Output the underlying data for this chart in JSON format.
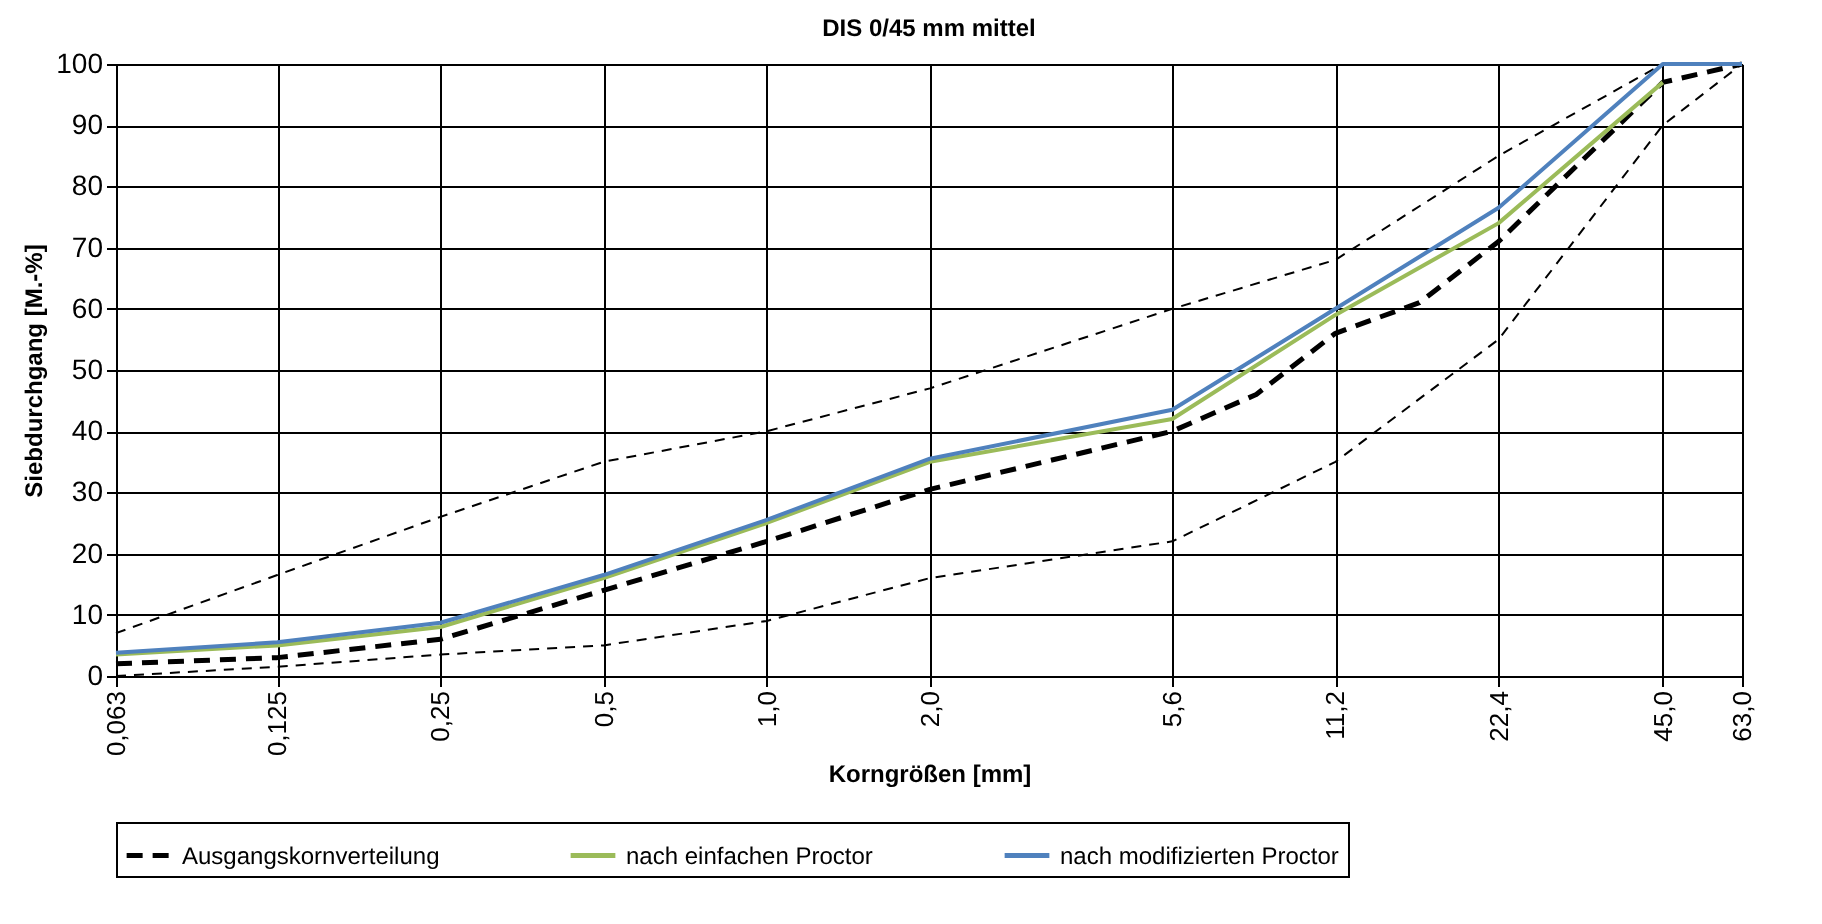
{
  "chart_data": {
    "type": "line",
    "title": "DIS 0/45 mm mittel",
    "xlabel": "Korngrößen [mm]",
    "ylabel": "Siebdurchgang [M.-%]",
    "log": "x",
    "grid": true,
    "legend": "bottom",
    "xlim": [
      0.063,
      63
    ],
    "ylim": [
      0,
      100
    ],
    "xticks": [
      {
        "value": 0.063,
        "label": "0,063"
      },
      {
        "value": 0.125,
        "label": "0,125"
      },
      {
        "value": 0.25,
        "label": "0,25"
      },
      {
        "value": 0.5,
        "label": "0,5"
      },
      {
        "value": 1,
        "label": "1,0"
      },
      {
        "value": 2,
        "label": "2,0"
      },
      {
        "value": 5.6,
        "label": "5,6"
      },
      {
        "value": 11.2,
        "label": "11,2"
      },
      {
        "value": 22.4,
        "label": "22,4"
      },
      {
        "value": 45,
        "label": "45,0"
      },
      {
        "value": 63,
        "label": "63,0"
      }
    ],
    "yticks": [
      0,
      10,
      20,
      30,
      40,
      50,
      60,
      70,
      80,
      90,
      100
    ],
    "series": [
      {
        "color": "#000000",
        "line_style": "dashed",
        "x": [
          0.063,
          0.125,
          0.25,
          0.5,
          1,
          2,
          5.6,
          11.2,
          22.4,
          45
        ],
        "values": [
          7,
          16.5,
          26,
          35,
          40,
          47,
          60,
          68,
          85,
          100
        ]
      },
      {
        "color": "#000000",
        "line_style": "dashed",
        "x": [
          0.063,
          0.125,
          0.25,
          0.5,
          1,
          2,
          5.6,
          11.2,
          22.4,
          45,
          63
        ],
        "values": [
          0,
          1.5,
          3.5,
          5,
          9,
          16,
          22,
          35,
          55,
          90,
          100
        ]
      },
      {
        "name": "Ausgangskornverteilung",
        "color": "#000000",
        "line_style": "dashed",
        "x": [
          0.063,
          0.125,
          0.25,
          0.5,
          1,
          2,
          5.6,
          8,
          11.2,
          16,
          22.4,
          45,
          63
        ],
        "values": [
          2,
          3,
          6,
          14,
          22,
          30.5,
          40,
          46,
          56,
          61,
          71,
          97,
          100
        ]
      },
      {
        "name": "nach einfachen Proctor",
        "color": "#9bbb59",
        "line_style": "solid",
        "x": [
          0.063,
          0.125,
          0.25,
          0.5,
          1,
          2,
          5.6,
          11.2,
          22.4,
          45
        ],
        "values": [
          3.5,
          5,
          8,
          16,
          25,
          35,
          42,
          59,
          74,
          97
        ]
      },
      {
        "name": "nach modifizierten Proctor",
        "color": "#4f81bd",
        "line_style": "solid",
        "x": [
          0.063,
          0.125,
          0.25,
          0.5,
          1,
          2,
          5.6,
          11.2,
          22.4,
          45,
          63
        ],
        "values": [
          3.8,
          5.5,
          8.7,
          16.5,
          25.5,
          35.5,
          43.5,
          60,
          76.5,
          100,
          100
        ]
      }
    ]
  }
}
